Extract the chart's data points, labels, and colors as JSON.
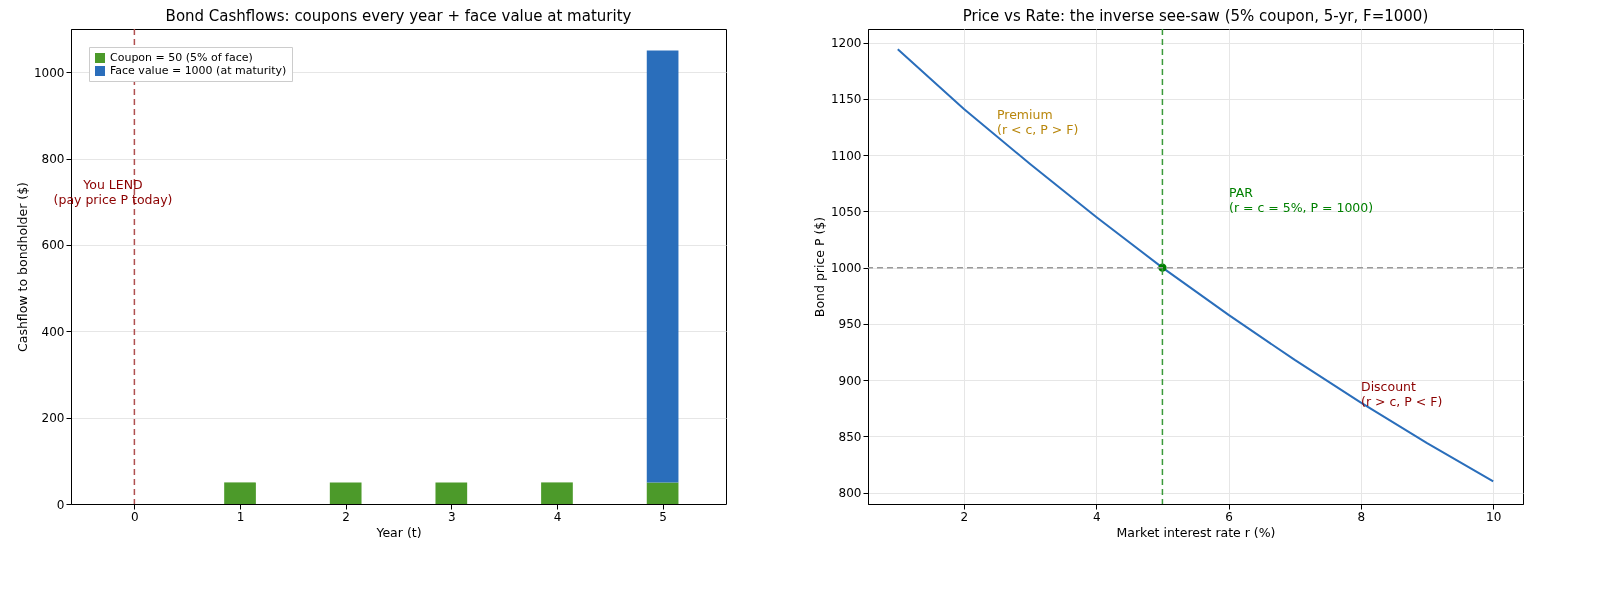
{
  "chart_data": [
    {
      "type": "bar",
      "title": "Bond Cashflows: coupons every year + face value at maturity",
      "xlabel": "Year (t)",
      "ylabel": "Cashflow to bondholder ($)",
      "x": [
        1,
        2,
        3,
        4,
        5
      ],
      "stacked": true,
      "series": [
        {
          "name": "Coupon = 50 (5% of face)",
          "color": "#4c9a2a",
          "values": [
            50,
            50,
            50,
            50,
            50
          ]
        },
        {
          "name": "Face value = 1000 (at maturity)",
          "color": "#2a6ebb",
          "values": [
            null,
            null,
            null,
            null,
            1000
          ]
        }
      ],
      "xlim": [
        -0.6,
        5.6
      ],
      "xticks": [
        0,
        1,
        2,
        3,
        4,
        5
      ],
      "ylim": [
        0,
        1100
      ],
      "yticks": [
        0,
        200,
        400,
        600,
        800,
        1000
      ],
      "grid": "y",
      "legend": "top left",
      "ref_lines": [
        {
          "axis": "x",
          "value": 0,
          "color": "#b05050",
          "line_style": "dashed"
        }
      ],
      "annotations": [
        "You LEND\n(pay price P today)"
      ]
    },
    {
      "type": "line",
      "title": "Price vs Rate: the inverse see-saw (5% coupon, 5-yr, F=1000)",
      "xlabel": "Market interest rate r (%)",
      "ylabel": "Bond price P ($)",
      "series": [
        {
          "color": "#2a6ebb",
          "x": [
            1,
            2,
            3,
            4,
            5,
            6,
            7,
            8,
            9,
            10
          ],
          "values": [
            1194,
            1141,
            1092,
            1045,
            1000,
            958,
            918,
            880,
            844,
            810
          ]
        },
        {
          "type": "scatter",
          "color": "#008000",
          "x": [
            5
          ],
          "values": [
            1000
          ],
          "marker": "circle"
        }
      ],
      "xlim": [
        0.55,
        10.45
      ],
      "xticks": [
        2,
        4,
        6,
        8,
        10
      ],
      "ylim": [
        790,
        1212
      ],
      "yticks": [
        800,
        850,
        900,
        950,
        1000,
        1050,
        1100,
        1150,
        1200
      ],
      "grid": true,
      "ref_lines": [
        {
          "axis": "y",
          "value": 1000,
          "color": "#999999",
          "line_style": "dashed"
        },
        {
          "axis": "x",
          "value": 5,
          "color": "#3a9a3a",
          "line_style": "dashed"
        }
      ],
      "annotations": [
        "Premium\n(r < c, P > F)",
        "PAR\n(r = c = 5%, P = 1000)",
        "Discount\n(r > c, P < F)"
      ]
    }
  ]
}
